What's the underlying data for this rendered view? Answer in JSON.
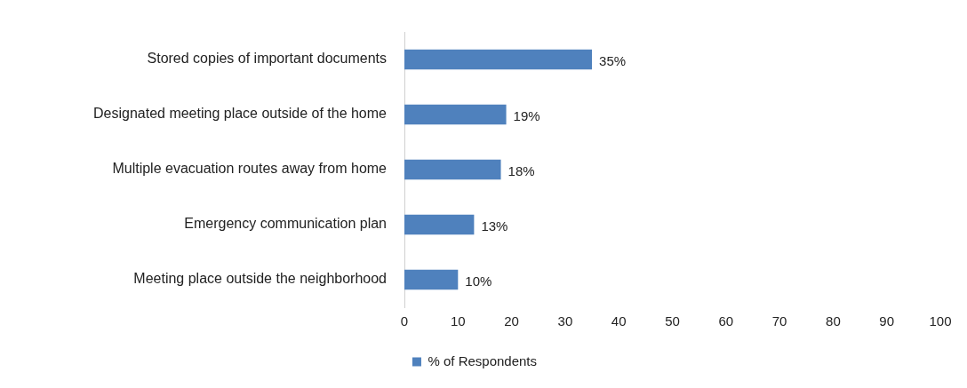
{
  "chart_data": {
    "type": "bar",
    "orientation": "horizontal",
    "categories": [
      "Stored copies of important documents",
      "Designated meeting place outside of the home",
      "Multiple evacuation routes away from home",
      "Emergency communication plan",
      "Meeting place outside the neighborhood"
    ],
    "series": [
      {
        "name": "% of Respondents",
        "color": "#4f81bd",
        "values": [
          35,
          19,
          18,
          13,
          10
        ],
        "value_labels": [
          "35%",
          "19%",
          "18%",
          "13%",
          "10%"
        ]
      }
    ],
    "xlim": [
      0,
      100
    ],
    "xticks": [
      0,
      10,
      20,
      30,
      40,
      50,
      60,
      70,
      80,
      90,
      100
    ],
    "grid": false,
    "legend": "bottom"
  }
}
